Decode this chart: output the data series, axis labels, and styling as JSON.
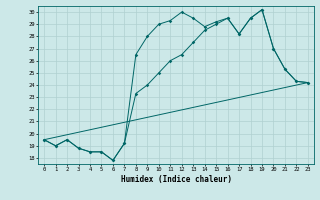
{
  "xlabel": "Humidex (Indice chaleur)",
  "bg_color": "#cce8e8",
  "grid_color": "#aacccc",
  "line_color": "#006666",
  "xlim": [
    -0.5,
    23.5
  ],
  "ylim": [
    17.5,
    30.5
  ],
  "xticks": [
    0,
    1,
    2,
    3,
    4,
    5,
    6,
    7,
    8,
    9,
    10,
    11,
    12,
    13,
    14,
    15,
    16,
    17,
    18,
    19,
    20,
    21,
    22,
    23
  ],
  "yticks": [
    18,
    19,
    20,
    21,
    22,
    23,
    24,
    25,
    26,
    27,
    28,
    29,
    30
  ],
  "line1_x": [
    0,
    1,
    2,
    3,
    4,
    5,
    6,
    7,
    8,
    9,
    10,
    11,
    12,
    13,
    14,
    15,
    16,
    17,
    18,
    19,
    20,
    21,
    22,
    23
  ],
  "line1_y": [
    19.5,
    19.0,
    19.5,
    18.8,
    18.5,
    18.5,
    17.8,
    19.2,
    26.5,
    28.0,
    29.0,
    29.3,
    30.0,
    29.5,
    28.8,
    29.2,
    29.5,
    28.2,
    29.5,
    30.2,
    27.0,
    25.3,
    24.3,
    24.2
  ],
  "line2_x": [
    0,
    1,
    2,
    3,
    4,
    5,
    6,
    7,
    8,
    9,
    10,
    11,
    12,
    13,
    14,
    15,
    16,
    17,
    18,
    19,
    20,
    21,
    22,
    23
  ],
  "line2_y": [
    19.5,
    19.0,
    19.5,
    18.8,
    18.5,
    18.5,
    17.8,
    19.2,
    23.3,
    24.0,
    25.0,
    26.0,
    26.5,
    27.5,
    28.5,
    29.0,
    29.5,
    28.2,
    29.5,
    30.2,
    27.0,
    25.3,
    24.3,
    24.2
  ],
  "line3_x": [
    0,
    23
  ],
  "line3_y": [
    19.5,
    24.2
  ]
}
